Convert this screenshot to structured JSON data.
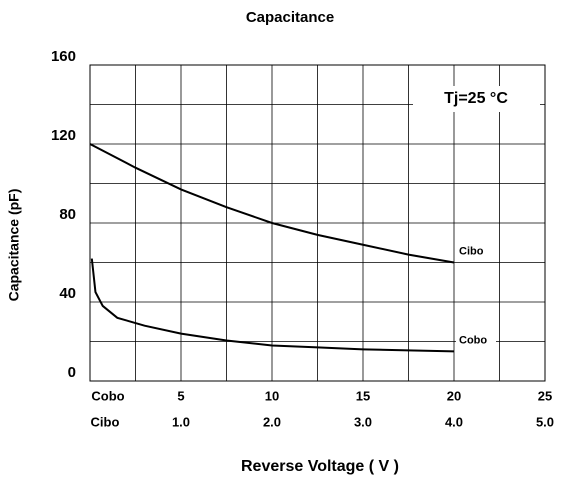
{
  "chart_data": {
    "type": "line",
    "title": "Capacitance",
    "xlabel": "Reverse Voltage ( V )",
    "ylabel": "Capacitance (pF)",
    "annotation": "Tj=25 °C",
    "ylim": [
      0,
      160
    ],
    "yticks": [
      0,
      40,
      80,
      120,
      160
    ],
    "xlim": [
      0,
      25
    ],
    "xticks": [
      {
        "value": 0,
        "label": "Cobo"
      },
      5,
      10,
      15,
      20,
      25
    ],
    "x2lim": [
      0,
      5
    ],
    "x2ticks": [
      {
        "value": 0,
        "label": "Cibo"
      },
      {
        "value": 1,
        "label": "1.0"
      },
      {
        "value": 2,
        "label": "2.0"
      },
      {
        "value": 3,
        "label": "3.0"
      },
      {
        "value": 4,
        "label": "4.0"
      },
      {
        "value": 5,
        "label": "5.0"
      }
    ],
    "grid": true,
    "series": [
      {
        "name": "Cibo",
        "color": "#000000",
        "axis": "x2",
        "x": [
          0,
          0.5,
          1.0,
          1.5,
          2.0,
          2.5,
          3.0,
          3.5,
          4.0
        ],
        "values": [
          120,
          108,
          97,
          88,
          80,
          74,
          69,
          64,
          60
        ]
      },
      {
        "name": "Cobo",
        "color": "#000000",
        "axis": "x",
        "x": [
          0.1,
          0.3,
          0.7,
          1.5,
          3,
          5,
          7.5,
          10,
          12.5,
          15,
          17.5,
          20
        ],
        "values": [
          62,
          45,
          38,
          32,
          28,
          24,
          20.5,
          18,
          17,
          16,
          15.5,
          15
        ]
      }
    ]
  }
}
